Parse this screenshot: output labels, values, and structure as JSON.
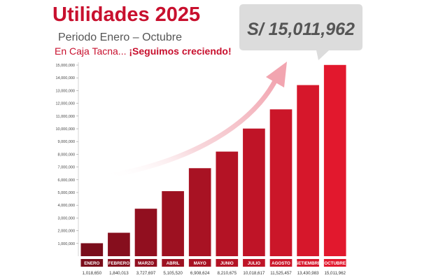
{
  "header": {
    "title": "Utilidades 2025",
    "subtitle": "Periodo Enero – Octubre",
    "tagline_prefix": "En Caja Tacna... ",
    "tagline_highlight": "¡Seguimos creciendo!"
  },
  "callout": {
    "total": "S/ 15,011,962"
  },
  "colors": {
    "brand_red": "#c8102e",
    "bar_dark": "#8a0f1f",
    "bar_light": "#e0192f",
    "subtitle_gray": "#555555",
    "callout_bg": "#d9d9d9",
    "callout_text": "#555555",
    "arrow_color": "#f2b3bb"
  },
  "chart_data": {
    "type": "bar",
    "categories": [
      "ENERO",
      "FEBRERO",
      "MARZO",
      "ABRIL",
      "MAYO",
      "JUNIO",
      "JULIO",
      "AGOSTO",
      "SETIEMBRE",
      "OCTUBRE"
    ],
    "values": [
      1018650,
      1840013,
      3727697,
      5105520,
      6908624,
      8210675,
      10018617,
      11525457,
      13430983,
      15011962
    ],
    "value_labels": [
      "1,018,650",
      "1,840,013",
      "3,727,697",
      "5,105,520",
      "6,908,624",
      "8,210,675",
      "10,018,617",
      "11,525,457",
      "13,430,983",
      "15,011,962"
    ],
    "y_ticks": [
      1000000,
      2000000,
      3000000,
      4000000,
      5000000,
      6000000,
      7000000,
      8000000,
      9000000,
      10000000,
      11000000,
      12000000,
      13000000,
      14000000,
      15000000
    ],
    "y_tick_labels": [
      "1,000,000",
      "2,000,000",
      "3,000,000",
      "4,000,000",
      "5,000,000",
      "6,000,000",
      "7,000,000",
      "8,000,000",
      "9,000,000",
      "10,000,000",
      "11,000,000",
      "12,000,000",
      "13,000,000",
      "14,000,000",
      "15,000,000"
    ],
    "ylim": [
      0,
      15600000
    ],
    "grid": false,
    "title": "Utilidades 2025",
    "xlabel": "",
    "ylabel": ""
  }
}
